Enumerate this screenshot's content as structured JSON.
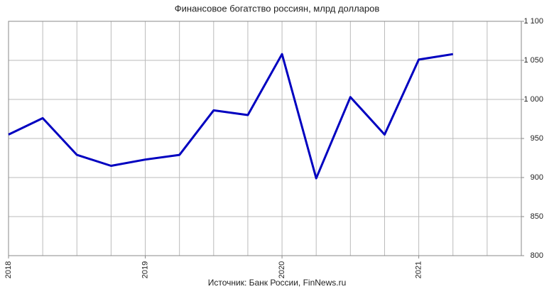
{
  "chart_data": {
    "type": "line",
    "title": "Финансовое богатство россиян, млрд долларов",
    "source": "Источник: Банк России, FinNews.ru",
    "x": [
      2018,
      2018.25,
      2018.5,
      2018.75,
      2019,
      2019.25,
      2019.5,
      2019.75,
      2020,
      2020.25,
      2020.5,
      2020.75,
      2021,
      2021.25
    ],
    "series": [
      {
        "name": "Финансовое богатство",
        "color": "#0000c0",
        "values": [
          955,
          976,
          929,
          915,
          923,
          929,
          986,
          980,
          1058,
          899,
          1003,
          955,
          1051,
          1058
        ]
      }
    ],
    "xlim": [
      2018,
      2021.75
    ],
    "xticks": [
      2018,
      2019,
      2020,
      2021
    ],
    "ylim": [
      800,
      1100
    ],
    "yticks": [
      800,
      850,
      900,
      950,
      {
        "value": 1000,
        "label": "1 000"
      },
      {
        "value": 1050,
        "label": "1 050"
      },
      {
        "value": 1100,
        "label": "1 100"
      }
    ],
    "grid": true
  }
}
